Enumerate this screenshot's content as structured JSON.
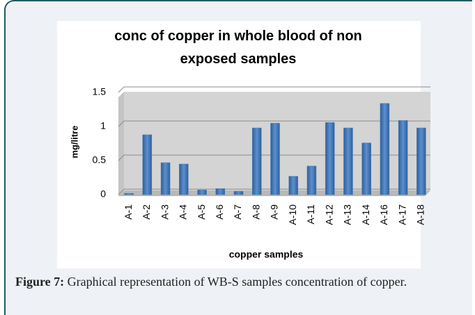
{
  "chart_data": {
    "type": "bar",
    "title": "conc of copper in whole blood of non exposed samples",
    "x_label": "copper samples",
    "y_label": "mg/litre",
    "categories": [
      "A-1",
      "A-2",
      "A-3",
      "A-4",
      "A-5",
      "A-6",
      "A-7",
      "A-8",
      "A-9",
      "A-10",
      "A-11",
      "A-12",
      "A-13",
      "A-14",
      "A-16",
      "A-17",
      "A-18"
    ],
    "values": [
      0.02,
      0.88,
      0.47,
      0.45,
      0.07,
      0.09,
      0.05,
      0.98,
      1.05,
      0.27,
      0.42,
      1.06,
      0.98,
      0.76,
      1.34,
      1.09,
      0.98
    ],
    "color": "#4a7ebb",
    "ylim": [
      0,
      1.5
    ],
    "yticks": [
      0,
      0.5,
      1,
      1.5
    ],
    "grid": true
  },
  "caption": {
    "label": "Figure 7:",
    "text": "Graphical representation of WB-S samples concentration of copper."
  }
}
